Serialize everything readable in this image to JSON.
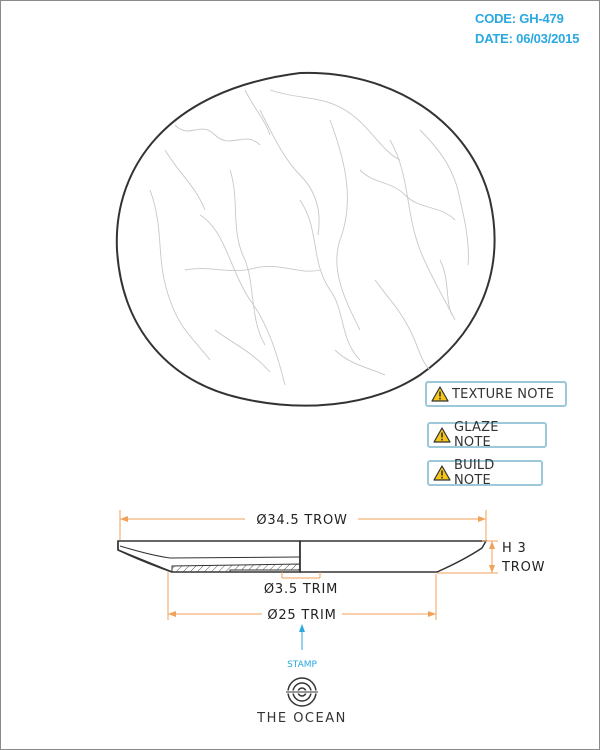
{
  "header": {
    "code": "CODE: GH-479",
    "date": "DATE: 06/03/2015"
  },
  "notes": [
    {
      "label": "TEXTURE NOTE",
      "icon": "warning-icon"
    },
    {
      "label": "GLAZE NOTE",
      "icon": "warning-icon"
    },
    {
      "label": "BUILD NOTE",
      "icon": "warning-icon"
    }
  ],
  "dimensions": {
    "outer_diameter": "Ø34.5 TROW",
    "height_line1": "H 3",
    "height_line2": "TROW",
    "foot_diameter": "Ø3.5 TRIM",
    "base_diameter": "Ø25 TRIM"
  },
  "stamp": {
    "label": "STAMP",
    "brand": "THE OCEAN",
    "icon": "ocean-logo-icon"
  },
  "colors": {
    "accent": "#2aa8e0",
    "dimension": "#f0a25a",
    "outline": "#333333",
    "note_border": "#9cc8da",
    "warning": "#f5c518"
  }
}
